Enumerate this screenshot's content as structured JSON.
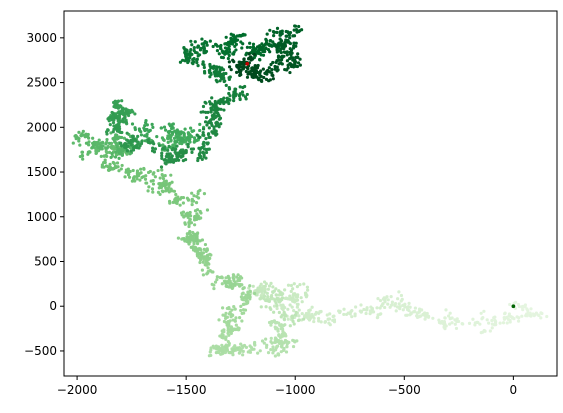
{
  "chart_data": {
    "type": "scatter",
    "title": "",
    "xlabel": "",
    "ylabel": "",
    "xlim": [
      -2060,
      200
    ],
    "ylim": [
      -780,
      3300
    ],
    "xticks": [
      -2000,
      -1500,
      -1000,
      -500,
      0
    ],
    "yticks": [
      -500,
      0,
      500,
      1000,
      1500,
      2000,
      2500,
      3000
    ],
    "xtick_labels": [
      "−2000",
      "−1500",
      "−1000",
      "−500",
      "0"
    ],
    "ytick_labels": [
      "−500",
      "0",
      "500",
      "1000",
      "1500",
      "2000",
      "2500",
      "3000"
    ],
    "grid": false,
    "legend": "none",
    "colormap": "Greens",
    "color_stops": [
      "#f7fcf5",
      "#e5f5e0",
      "#c7e9c0",
      "#a1d99b",
      "#74c476",
      "#41ab5d",
      "#238b45",
      "#006d2c",
      "#00441b"
    ],
    "path": {
      "description_order": "start to end",
      "waypoints": [
        [
          0,
          0
        ],
        [
          60,
          -120
        ],
        [
          -100,
          -150
        ],
        [
          -300,
          -140
        ],
        [
          -450,
          -60
        ],
        [
          -600,
          0
        ],
        [
          -800,
          -80
        ],
        [
          -950,
          -120
        ],
        [
          -1050,
          -40
        ],
        [
          -1000,
          150
        ],
        [
          -1150,
          250
        ],
        [
          -1100,
          -200
        ],
        [
          -1050,
          -450
        ],
        [
          -1200,
          -400
        ],
        [
          -1350,
          -500
        ],
        [
          -1300,
          -250
        ],
        [
          -1250,
          100
        ],
        [
          -1300,
          300
        ],
        [
          -1400,
          500
        ],
        [
          -1400,
          650
        ],
        [
          -1450,
          800
        ],
        [
          -1500,
          1000
        ],
        [
          -1450,
          1100
        ],
        [
          -1550,
          1200
        ],
        [
          -1600,
          1400
        ],
        [
          -1750,
          1500
        ],
        [
          -1900,
          1600
        ],
        [
          -1800,
          1750
        ],
        [
          -2000,
          1800
        ],
        [
          -1850,
          1900
        ],
        [
          -1750,
          1700
        ],
        [
          -1700,
          1800
        ],
        [
          -1600,
          1900
        ],
        [
          -1550,
          1850
        ],
        [
          -1500,
          1950
        ],
        [
          -1450,
          2000
        ],
        [
          -1550,
          1900
        ],
        [
          -1850,
          2250
        ],
        [
          -1800,
          1900
        ],
        [
          -1650,
          1700
        ],
        [
          -1550,
          1600
        ],
        [
          -1550,
          1700
        ],
        [
          -1450,
          1800
        ],
        [
          -1350,
          2050
        ],
        [
          -1400,
          2200
        ],
        [
          -1300,
          2300
        ],
        [
          -1250,
          2450
        ],
        [
          -1350,
          2600
        ],
        [
          -1500,
          2800
        ],
        [
          -1400,
          2950
        ],
        [
          -1300,
          2850
        ],
        [
          -1250,
          3000
        ],
        [
          -1150,
          2950
        ],
        [
          -1200,
          2850
        ],
        [
          -1100,
          3000
        ],
        [
          -1050,
          3100
        ],
        [
          -1050,
          2950
        ],
        [
          -1000,
          2750
        ],
        [
          -1150,
          2600
        ],
        [
          -1250,
          2750
        ],
        [
          -1200,
          2700
        ],
        [
          -1150,
          2650
        ],
        [
          -1280,
          2680
        ],
        [
          -1220,
          2710
        ]
      ],
      "point_count": 2500,
      "random_seed": 7
    },
    "markers": {
      "start": {
        "x": 0,
        "y": 0,
        "color": "#006400",
        "size": 3
      },
      "end": {
        "x": -1220,
        "y": 2710,
        "color": "#c00000",
        "size": 3
      }
    }
  }
}
